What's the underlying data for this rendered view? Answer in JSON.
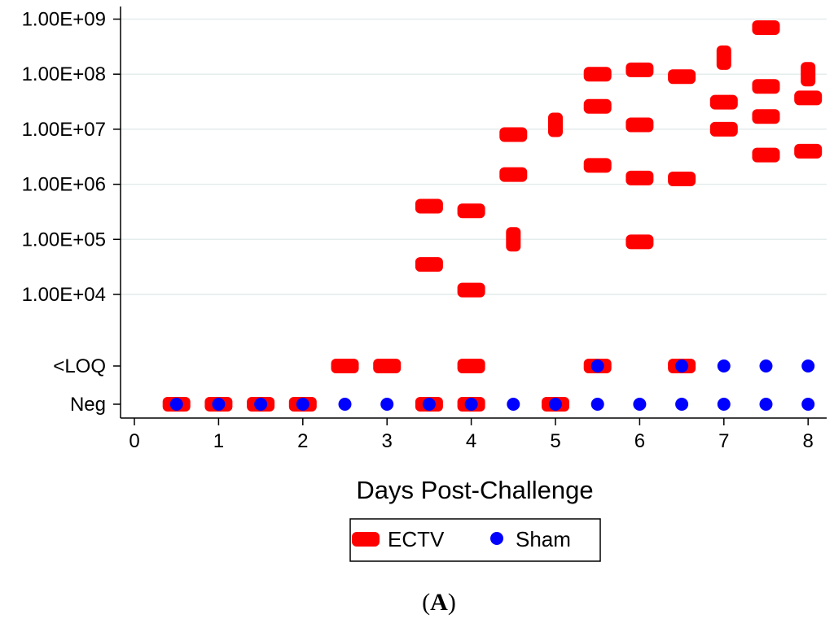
{
  "panel_label": {
    "open": "(",
    "letter": "A",
    "close": ")"
  },
  "colors": {
    "ectv": "#ff0000",
    "sham": "#0000ff",
    "grid": "#e4ecec"
  },
  "chart_data": {
    "type": "scatter",
    "title": "",
    "xlabel": "Days Post-Challenge",
    "ylabel": "",
    "y_scale": "log10 (with categorical Neg and <LOQ levels)",
    "xlim": [
      0,
      8
    ],
    "x_ticks": [
      "0",
      "1",
      "2",
      "3",
      "4",
      "5",
      "6",
      "7",
      "8"
    ],
    "y_ticks": [
      "Neg",
      "<LOQ",
      "1.00E+04",
      "1.00E+05",
      "1.00E+06",
      "1.00E+07",
      "1.00E+08",
      "1.00E+09"
    ],
    "grid": "horizontal",
    "legend_position": "bottom",
    "series": [
      {
        "name": "ECTV",
        "marker": "red-dash",
        "points": [
          {
            "x": 0.5,
            "y": "Neg"
          },
          {
            "x": 1,
            "y": "Neg"
          },
          {
            "x": 1.5,
            "y": "Neg"
          },
          {
            "x": 2,
            "y": "Neg"
          },
          {
            "x": 2.5,
            "y": "<LOQ"
          },
          {
            "x": 3,
            "y": "<LOQ"
          },
          {
            "x": 3.5,
            "y": 400000
          },
          {
            "x": 3.5,
            "y": 35000
          },
          {
            "x": 3.5,
            "y": "Neg"
          },
          {
            "x": 4,
            "y": 330000
          },
          {
            "x": 4,
            "y": 12000
          },
          {
            "x": 4,
            "y": "<LOQ"
          },
          {
            "x": 4,
            "y": "Neg"
          },
          {
            "x": 4.5,
            "y": 8000000
          },
          {
            "x": 4.5,
            "y": 1500000
          },
          {
            "x": 4.5,
            "y": 100000
          },
          {
            "x": 5,
            "y": 12000000
          },
          {
            "x": 5,
            "y": "Neg"
          },
          {
            "x": 5.5,
            "y": 100000000
          },
          {
            "x": 5.5,
            "y": 26000000
          },
          {
            "x": 5.5,
            "y": 2200000
          },
          {
            "x": 5.5,
            "y": "<LOQ"
          },
          {
            "x": 6,
            "y": 120000000
          },
          {
            "x": 6,
            "y": 12000000
          },
          {
            "x": 6,
            "y": 1300000
          },
          {
            "x": 6,
            "y": 90000
          },
          {
            "x": 6.5,
            "y": 90000000
          },
          {
            "x": 6.5,
            "y": 1250000
          },
          {
            "x": 6.5,
            "y": "<LOQ"
          },
          {
            "x": 7,
            "y": 200000000
          },
          {
            "x": 7,
            "y": 31000000
          },
          {
            "x": 7,
            "y": 10000000
          },
          {
            "x": 7.5,
            "y": 700000000
          },
          {
            "x": 7.5,
            "y": 60000000
          },
          {
            "x": 7.5,
            "y": 17000000
          },
          {
            "x": 7.5,
            "y": 3400000
          },
          {
            "x": 8,
            "y": 100000000
          },
          {
            "x": 8,
            "y": 37000000
          },
          {
            "x": 8,
            "y": 4000000
          }
        ]
      },
      {
        "name": "Sham",
        "marker": "blue-dot",
        "points": [
          {
            "x": 0.5,
            "y": "Neg"
          },
          {
            "x": 1,
            "y": "Neg"
          },
          {
            "x": 1.5,
            "y": "Neg"
          },
          {
            "x": 2,
            "y": "Neg"
          },
          {
            "x": 2.5,
            "y": "Neg"
          },
          {
            "x": 3,
            "y": "Neg"
          },
          {
            "x": 3.5,
            "y": "Neg"
          },
          {
            "x": 4,
            "y": "Neg"
          },
          {
            "x": 4.5,
            "y": "Neg"
          },
          {
            "x": 5,
            "y": "Neg"
          },
          {
            "x": 5.5,
            "y": "Neg"
          },
          {
            "x": 5.5,
            "y": "<LOQ"
          },
          {
            "x": 6,
            "y": "Neg"
          },
          {
            "x": 6.5,
            "y": "Neg"
          },
          {
            "x": 6.5,
            "y": "<LOQ"
          },
          {
            "x": 7,
            "y": "Neg"
          },
          {
            "x": 7,
            "y": "<LOQ"
          },
          {
            "x": 7.5,
            "y": "Neg"
          },
          {
            "x": 7.5,
            "y": "<LOQ"
          },
          {
            "x": 8,
            "y": "Neg"
          },
          {
            "x": 8,
            "y": "<LOQ"
          }
        ]
      }
    ]
  }
}
